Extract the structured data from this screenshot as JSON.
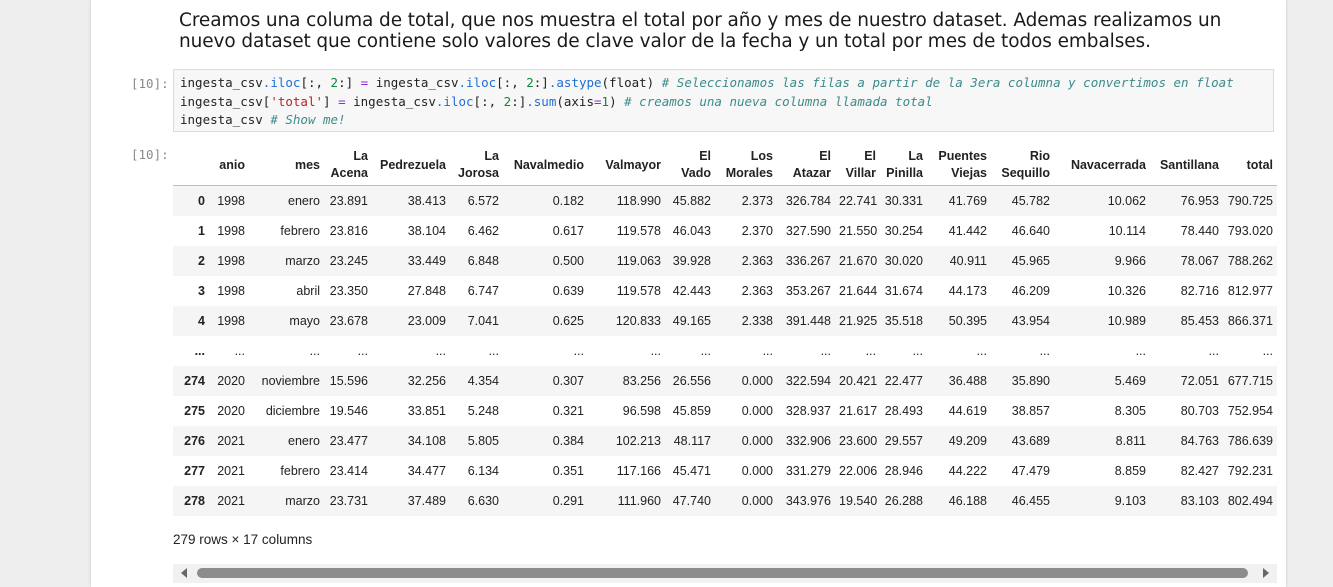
{
  "markdown": {
    "text": "Creamos una columa de total, que nos muestra el total por año y mes de nuestro dataset. Ademas realizamos un nuevo dataset que contiene solo valores de clave valor de la fecha y un total por mes de todos embalses."
  },
  "code_cell": {
    "in_prompt": "[10]:",
    "line1": {
      "p1": "ingesta_csv",
      "p2": ".iloc",
      "p3": "[:, ",
      "p4": "2",
      "p5": ":] ",
      "p6": "=",
      "p7": " ingesta_csv",
      "p8": ".iloc",
      "p9": "[:, ",
      "p10": "2",
      "p11": ":]",
      "p12": ".astype",
      "p13": "(float) ",
      "comment": "# Seleccionamos las filas a partir de la 3era columna y convertimos en float"
    },
    "line2": {
      "p1": "ingesta_csv[",
      "str": "'total'",
      "p2": "] ",
      "op": "=",
      "p3": " ingesta_csv",
      "p4": ".iloc",
      "p5": "[:, ",
      "num": "2",
      "p6": ":]",
      "p7": ".sum",
      "p8": "(axis",
      "op2": "=",
      "num2": "1",
      "p9": ") ",
      "comment": "# creamos una nueva columna llamada total"
    },
    "line3": {
      "p1": "ingesta_csv ",
      "comment": "# Show me!"
    }
  },
  "output": {
    "out_prompt": "[10]:",
    "columns": [
      "",
      "anio",
      "mes",
      "La Acena",
      "Pedrezuela",
      "La Jorosa",
      "Navalmedio",
      "Valmayor",
      "El Vado",
      "Los Morales",
      "El Atazar",
      "El Villar",
      "La Pinilla",
      "Puentes Viejas",
      "Rio Sequillo",
      "Navacerrada",
      "Santillana",
      "total"
    ],
    "rows": [
      [
        "0",
        "1998",
        "enero",
        "23.891",
        "38.413",
        "6.572",
        "0.182",
        "118.990",
        "45.882",
        "2.373",
        "326.784",
        "22.741",
        "30.331",
        "41.769",
        "45.782",
        "10.062",
        "76.953",
        "790.725"
      ],
      [
        "1",
        "1998",
        "febrero",
        "23.816",
        "38.104",
        "6.462",
        "0.617",
        "119.578",
        "46.043",
        "2.370",
        "327.590",
        "21.550",
        "30.254",
        "41.442",
        "46.640",
        "10.114",
        "78.440",
        "793.020"
      ],
      [
        "2",
        "1998",
        "marzo",
        "23.245",
        "33.449",
        "6.848",
        "0.500",
        "119.063",
        "39.928",
        "2.363",
        "336.267",
        "21.670",
        "30.020",
        "40.911",
        "45.965",
        "9.966",
        "78.067",
        "788.262"
      ],
      [
        "3",
        "1998",
        "abril",
        "23.350",
        "27.848",
        "6.747",
        "0.639",
        "119.578",
        "42.443",
        "2.363",
        "353.267",
        "21.644",
        "31.674",
        "44.173",
        "46.209",
        "10.326",
        "82.716",
        "812.977"
      ],
      [
        "4",
        "1998",
        "mayo",
        "23.678",
        "23.009",
        "7.041",
        "0.625",
        "120.833",
        "49.165",
        "2.338",
        "391.448",
        "21.925",
        "35.518",
        "50.395",
        "43.954",
        "10.989",
        "85.453",
        "866.371"
      ],
      [
        "...",
        "...",
        "...",
        "...",
        "...",
        "...",
        "...",
        "...",
        "...",
        "...",
        "...",
        "...",
        "...",
        "...",
        "...",
        "...",
        "...",
        "..."
      ],
      [
        "274",
        "2020",
        "noviembre",
        "15.596",
        "32.256",
        "4.354",
        "0.307",
        "83.256",
        "26.556",
        "0.000",
        "322.594",
        "20.421",
        "22.477",
        "36.488",
        "35.890",
        "5.469",
        "72.051",
        "677.715"
      ],
      [
        "275",
        "2020",
        "diciembre",
        "19.546",
        "33.851",
        "5.248",
        "0.321",
        "96.598",
        "45.859",
        "0.000",
        "328.937",
        "21.617",
        "28.493",
        "44.619",
        "38.857",
        "8.305",
        "80.703",
        "752.954"
      ],
      [
        "276",
        "2021",
        "enero",
        "23.477",
        "34.108",
        "5.805",
        "0.384",
        "102.213",
        "48.117",
        "0.000",
        "332.906",
        "23.600",
        "29.557",
        "49.209",
        "43.689",
        "8.811",
        "84.763",
        "786.639"
      ],
      [
        "277",
        "2021",
        "febrero",
        "23.414",
        "34.477",
        "6.134",
        "0.351",
        "117.166",
        "45.471",
        "0.000",
        "331.279",
        "22.006",
        "28.946",
        "44.222",
        "47.479",
        "8.859",
        "82.427",
        "792.231"
      ],
      [
        "278",
        "2021",
        "marzo",
        "23.731",
        "37.489",
        "6.630",
        "0.291",
        "111.960",
        "47.740",
        "0.000",
        "343.976",
        "19.540",
        "26.288",
        "46.188",
        "46.455",
        "9.103",
        "83.103",
        "802.494"
      ]
    ],
    "footer": "279 rows × 17 columns"
  }
}
